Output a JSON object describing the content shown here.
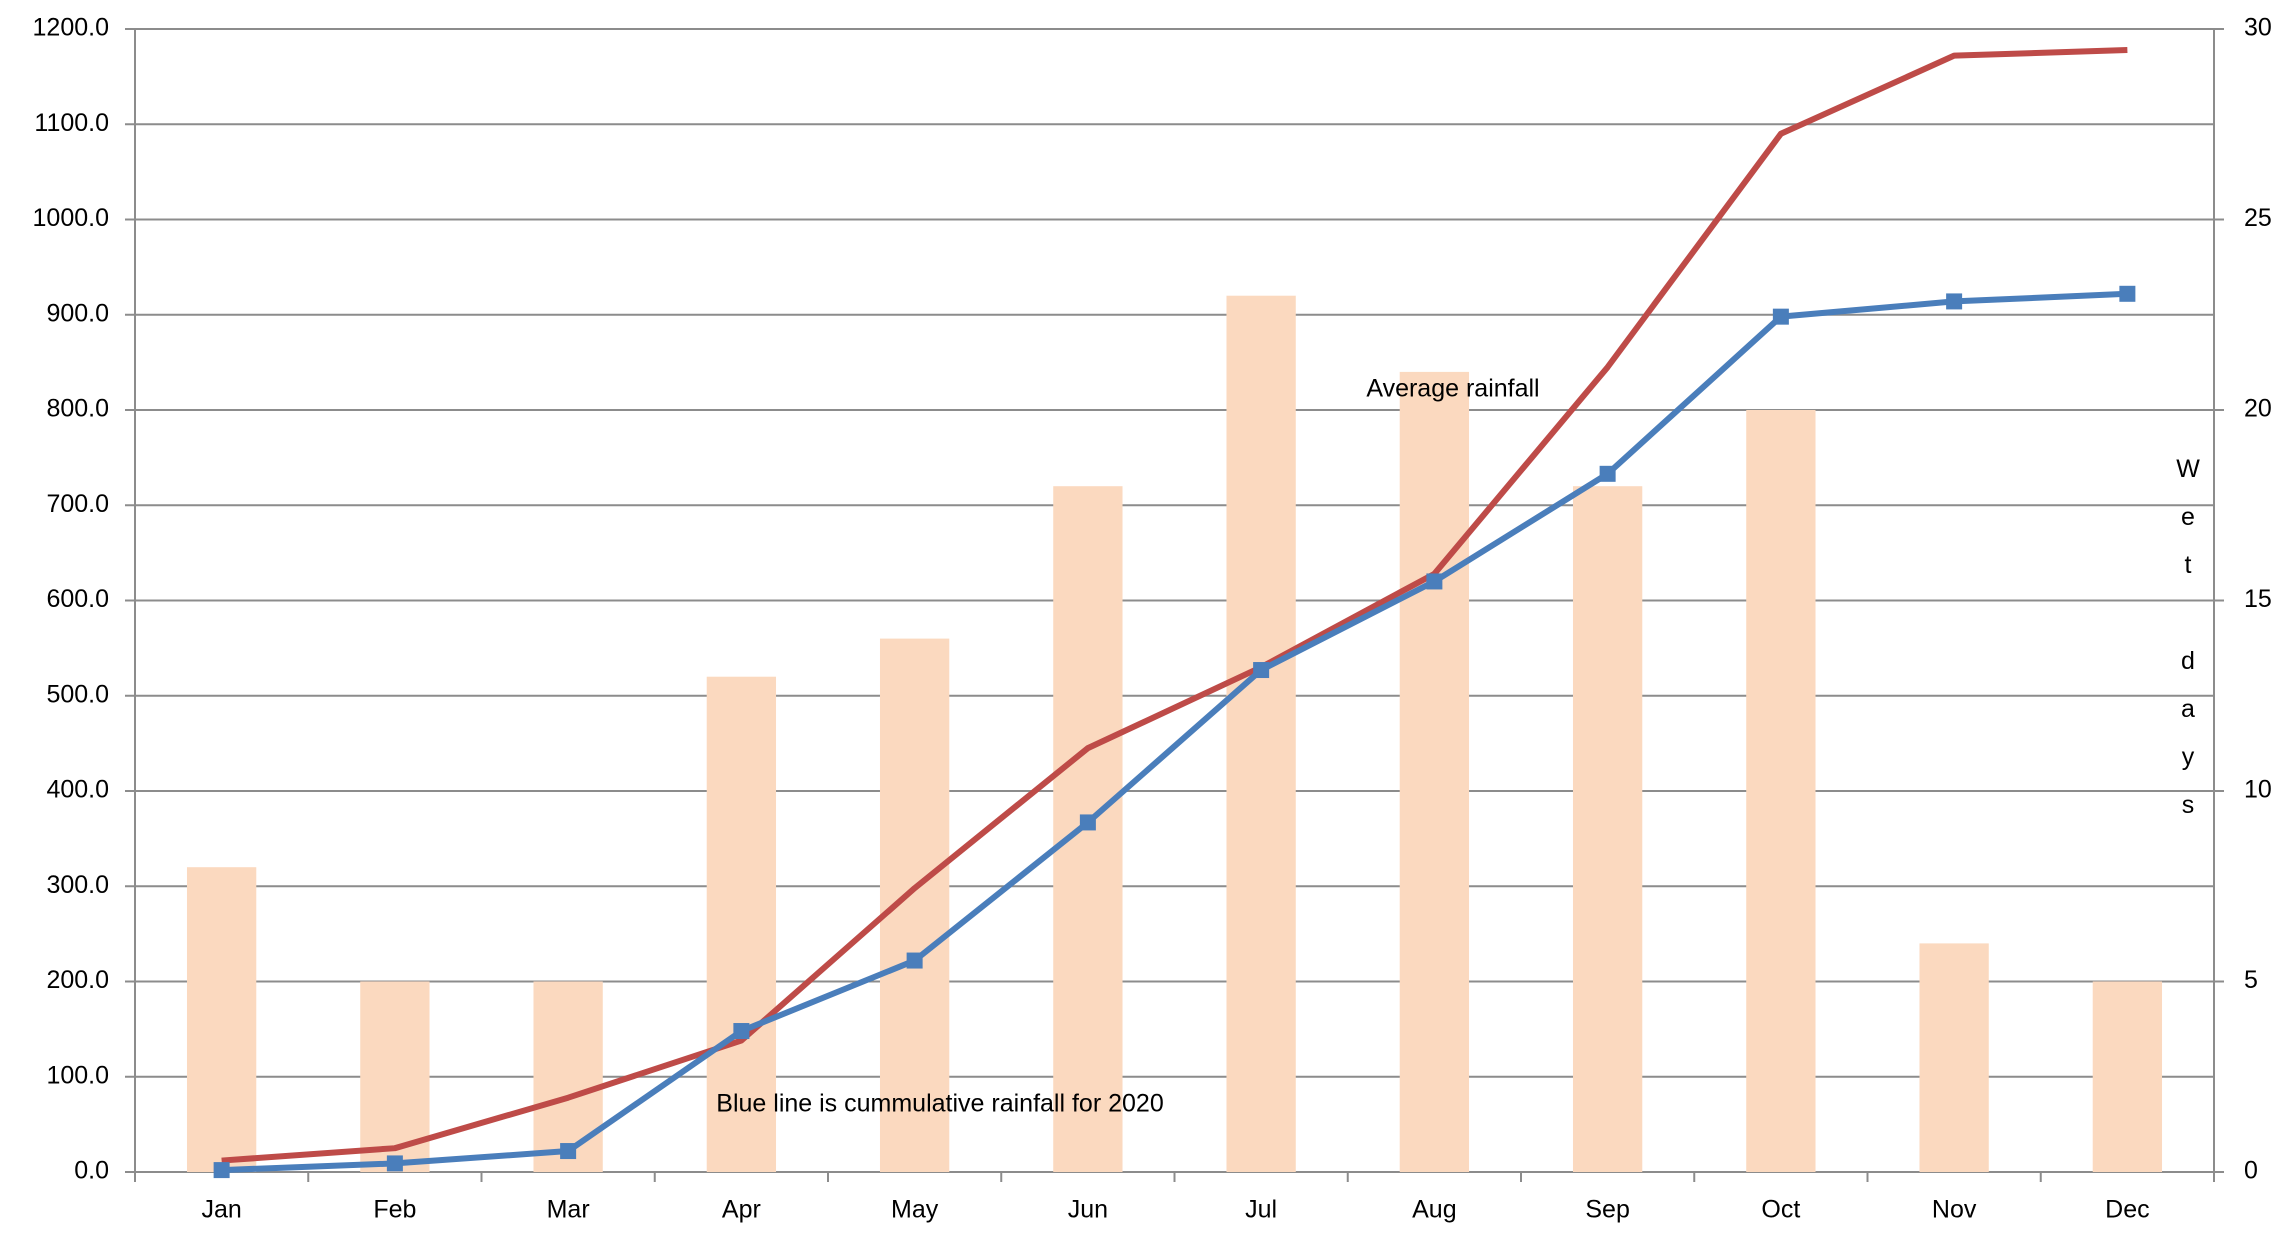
{
  "chart_data": {
    "type": "combo",
    "categories": [
      "Jan",
      "Feb",
      "Mar",
      "Apr",
      "May",
      "Jun",
      "Jul",
      "Aug",
      "Sep",
      "Oct",
      "Nov",
      "Dec"
    ],
    "series": [
      {
        "type": "bar",
        "axis": "y2",
        "color": "#fbd9bf",
        "values": [
          8,
          5,
          5,
          13,
          14,
          18,
          23,
          21,
          18,
          20,
          6,
          5
        ]
      },
      {
        "type": "line",
        "color": "#be4b48",
        "values": [
          12,
          25,
          78,
          138,
          298,
          445,
          530,
          628,
          845,
          1090,
          1172,
          1178
        ]
      },
      {
        "type": "line",
        "color": "#4a7ebb",
        "markers": true,
        "values": [
          2,
          9,
          22,
          148,
          222,
          367,
          527,
          620,
          733,
          898,
          914,
          922
        ]
      }
    ],
    "ylim": [
      0,
      1200
    ],
    "yticks": [
      {
        "value": 0,
        "label": "0.0"
      },
      {
        "value": 100,
        "label": "100.0"
      },
      {
        "value": 200,
        "label": "200.0"
      },
      {
        "value": 300,
        "label": "300.0"
      },
      {
        "value": 400,
        "label": "400.0"
      },
      {
        "value": 500,
        "label": "500.0"
      },
      {
        "value": 600,
        "label": "600.0"
      },
      {
        "value": 700,
        "label": "700.0"
      },
      {
        "value": 800,
        "label": "800.0"
      },
      {
        "value": 900,
        "label": "900.0"
      },
      {
        "value": 1000,
        "label": "1000.0"
      },
      {
        "value": 1100,
        "label": "1100.0"
      },
      {
        "value": 1200,
        "label": "1200.0"
      }
    ],
    "y2lim": [
      0,
      30
    ],
    "y2ticks": [
      0,
      5,
      10,
      15,
      20,
      25,
      30
    ],
    "y2_label": "Wet days",
    "grid": true,
    "annotations": [
      "Average rainfall",
      "Blue line is cummulative rainfall for 2020"
    ]
  }
}
